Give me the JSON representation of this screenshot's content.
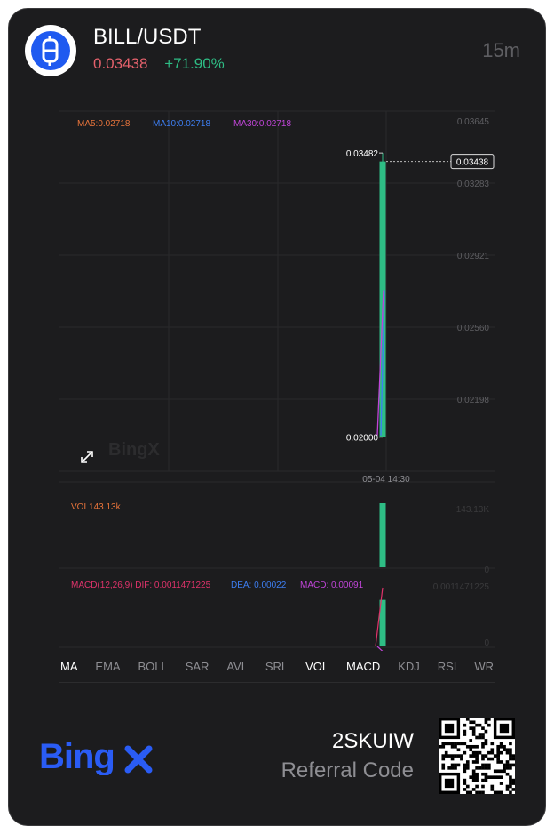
{
  "header": {
    "pair": "BILL/USDT",
    "last_price": "0.03438",
    "change_percent": "+71.90%",
    "interval": "15m",
    "coin_icon": "bitcoin-style-b-icon"
  },
  "colors": {
    "up": "#2ebd85",
    "down": "#e5616c",
    "ma5": "#e8743b",
    "ma10": "#3d7ef2",
    "ma30": "#c045d8",
    "macd_dif": "#e0336b",
    "macd_dea": "#3d7ef2",
    "macd_hist": "#c045d8",
    "brand": "#2a5cf5"
  },
  "chart_data": [
    {
      "type": "candlestick",
      "name": "price",
      "legend": [
        {
          "label": "MA5:0.02718",
          "color_key": "ma5"
        },
        {
          "label": "MA10:0.02718",
          "color_key": "ma10"
        },
        {
          "label": "MA30:0.02718",
          "color_key": "ma30"
        }
      ],
      "y_ticks": [
        "0.03645",
        "0.03283",
        "0.02921",
        "0.02560",
        "0.02198"
      ],
      "ylim": [
        0.0188,
        0.03645
      ],
      "x_label": "05-04 14:30",
      "candles": [
        {
          "time": "05-04 14:30",
          "open": 0.02,
          "high": 0.03482,
          "low": 0.02,
          "close": 0.03438
        }
      ],
      "high_label": "0.03482",
      "low_label": "0.02000",
      "last_price_tag": "0.03438",
      "watermark": "BingX"
    },
    {
      "type": "bar",
      "name": "volume",
      "legend_label": "VOL143.13k",
      "y_ticks": [
        "143.13K",
        "0"
      ],
      "values": [
        143130
      ],
      "ylim": [
        0,
        143130
      ]
    },
    {
      "type": "bar",
      "name": "macd",
      "legend": [
        {
          "label": "MACD(12,26,9) DIF: 0.0011471225",
          "color_key": "macd_dif"
        },
        {
          "label": "DEA: 0.00022",
          "color_key": "macd_dea"
        },
        {
          "label": "MACD: 0.00091",
          "color_key": "macd_hist"
        }
      ],
      "y_ticks": [
        "0.0011471225",
        "0"
      ],
      "values": [
        0.00091
      ],
      "dif": 0.0011471225,
      "dea": 0.00022,
      "ylim": [
        0,
        0.0011471225
      ]
    }
  ],
  "indicator_tabs": [
    {
      "label": "MA",
      "active": true
    },
    {
      "label": "EMA",
      "active": false
    },
    {
      "label": "BOLL",
      "active": false
    },
    {
      "label": "SAR",
      "active": false
    },
    {
      "label": "AVL",
      "active": false
    },
    {
      "label": "SRL",
      "active": false
    },
    {
      "label": "VOL",
      "active": true
    },
    {
      "label": "MACD",
      "active": true
    },
    {
      "label": "KDJ",
      "active": false
    },
    {
      "label": "RSI",
      "active": false
    },
    {
      "label": "WR",
      "active": false
    }
  ],
  "footer": {
    "brand": "BingX",
    "referral_code": "2SKUIW",
    "referral_label": "Referral Code",
    "qr_icon": "qr-code-icon"
  }
}
